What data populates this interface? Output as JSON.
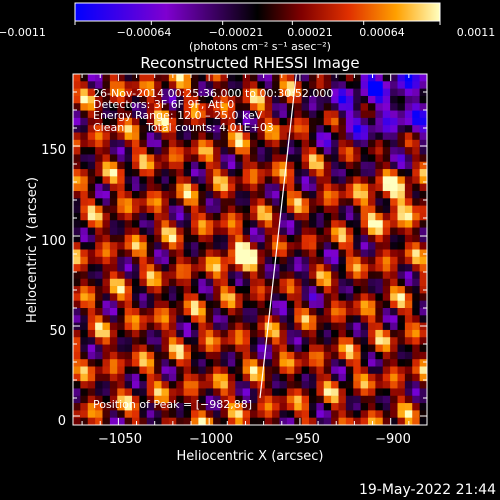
{
  "chart_data": {
    "type": "heatmap",
    "title": "Reconstructed RHESSI Image",
    "xlabel": "Heliocentric X (arcsec)",
    "ylabel": "Heliocentric Y (arcsec)",
    "xlim": [
      -1075,
      -880
    ],
    "ylim": [
      -5,
      190
    ],
    "x_ticks": [
      -1050,
      -1000,
      -950,
      -900
    ],
    "x_tick_labels": [
      "−1050",
      "−1000",
      "−950",
      "−900"
    ],
    "y_ticks": [
      0,
      50,
      100,
      150
    ],
    "y_tick_labels": [
      "0",
      "50",
      "100",
      "150"
    ],
    "colorbar": {
      "min": -0.0011,
      "max": 0.0011,
      "ticks": [
        -0.0011,
        -0.00064,
        -0.00021,
        0.00021,
        0.00064,
        0.0011
      ],
      "tick_labels": [
        "−0.0011",
        "−0.00064",
        "−0.00021",
        "0.00021",
        "0.00064",
        "0.0011"
      ],
      "label": "(photons cm⁻² s⁻¹ asec⁻²)",
      "colormap": [
        "#0000ff",
        "#7f00d0",
        "#000000",
        "#800000",
        "#e03000",
        "#ffa000",
        "#ffffc0"
      ]
    },
    "peak": [
      -982,
      88
    ],
    "limb_line": [
      [
        -952,
        190
      ],
      [
        -972,
        10
      ]
    ],
    "grid": false
  },
  "annotations": {
    "line1": "26-Nov-2014 00:25:36.000 to 00:30:52.000",
    "line2": "Detectors: 3F 6F 9F, Att 0",
    "line3": "Energy Range: 12.0 – 25.0 keV",
    "line4_left": "Clean",
    "line4_right": "Total counts: 4.01E+03",
    "peak_label": "Position of Peak = [−982,88]"
  },
  "footer": {
    "timestamp": "19-May-2022 21:44"
  }
}
